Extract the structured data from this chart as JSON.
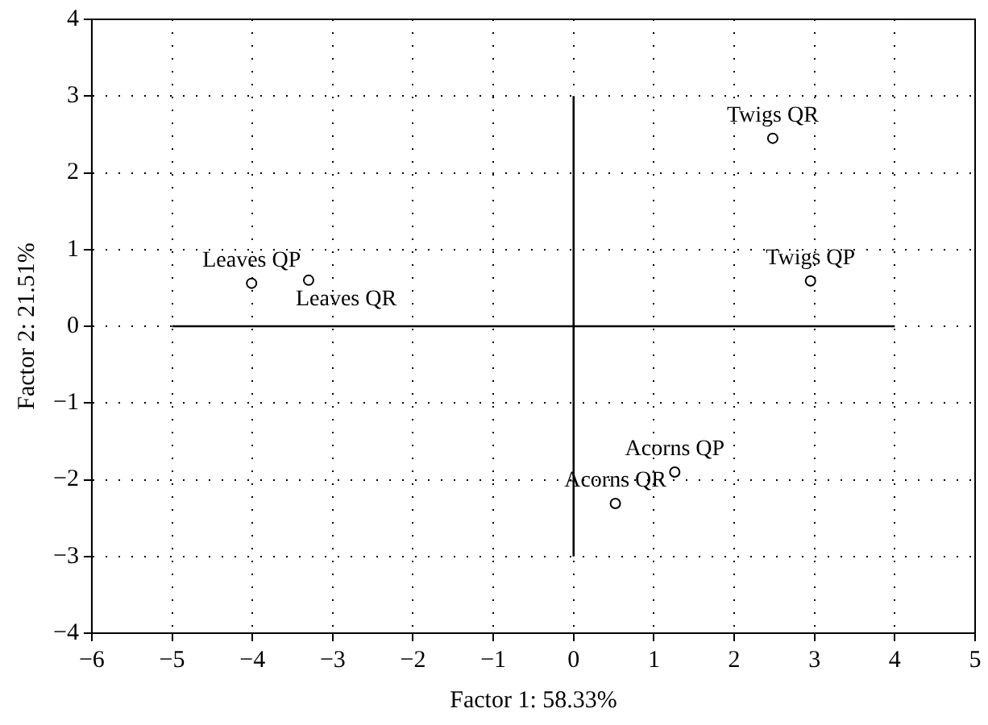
{
  "chart_data": {
    "type": "scatter",
    "xlabel": "Factor 1: 58.33%",
    "ylabel": "Factor 2: 21.51%",
    "xlim": [
      -6,
      5
    ],
    "xticks": [
      -6,
      -5,
      -4,
      -3,
      -2,
      -1,
      0,
      1,
      2,
      3,
      4,
      5
    ],
    "ylim": [
      -4,
      4
    ],
    "yticks": [
      -4,
      -3,
      -2,
      -1,
      0,
      1,
      2,
      3,
      4
    ],
    "grid": true,
    "legend": false,
    "marker": "circle",
    "series": [
      {
        "type": "line",
        "color": "#000000",
        "x": [
          -5,
          4
        ],
        "values": [
          0,
          0
        ],
        "marker": "none"
      },
      {
        "type": "line",
        "color": "#000000",
        "x": [
          0,
          0
        ],
        "values": [
          -3,
          3
        ],
        "marker": "none"
      },
      {
        "color": "#000000",
        "x": [
          -4.01,
          -3.3,
          2.48,
          2.95,
          1.26,
          0.52
        ],
        "values": [
          0.56,
          0.6,
          2.45,
          0.59,
          -1.9,
          -2.31
        ]
      }
    ],
    "annotations": [
      {
        "text": "Leaves QP",
        "x": -4.01,
        "y": 0.56
      },
      {
        "text": "Leaves QR",
        "x": -3.3,
        "y": 0.6
      },
      {
        "text": "Twigs QR",
        "x": 2.48,
        "y": 2.45
      },
      {
        "text": "Twigs QP",
        "x": 2.95,
        "y": 0.59
      },
      {
        "text": "Acorns QP",
        "x": 1.26,
        "y": -1.9
      },
      {
        "text": "Acorns QR",
        "x": 0.52,
        "y": -2.31
      }
    ]
  }
}
